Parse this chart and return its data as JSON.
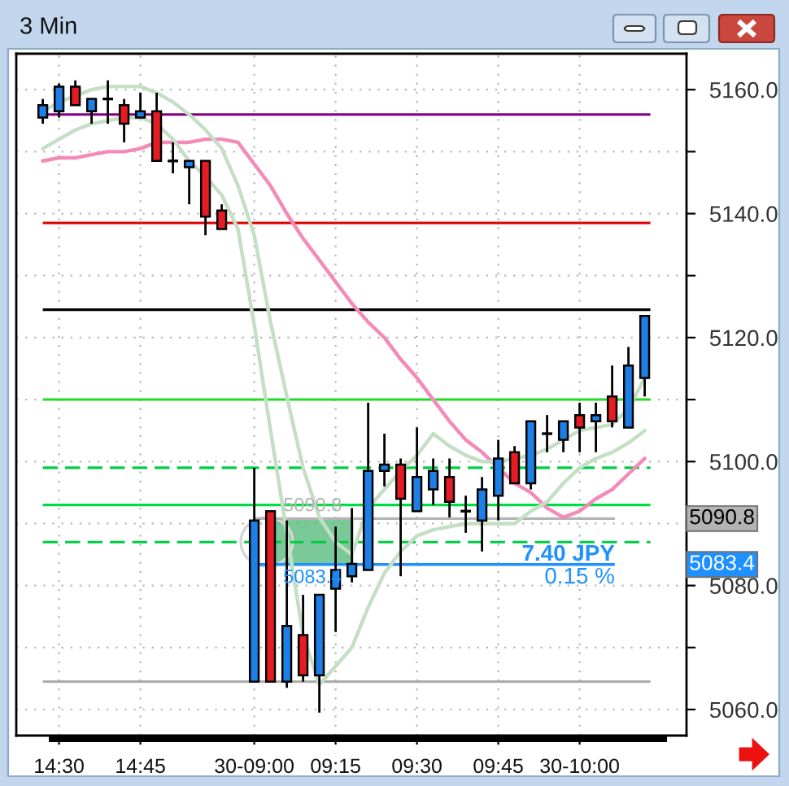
{
  "chart_data": {
    "type": "candlestick",
    "title": "3 Min",
    "categories": [
      null,
      "14:30",
      null,
      null,
      null,
      null,
      "14:45",
      null,
      null,
      null,
      null,
      null,
      null,
      "30-09:00",
      null,
      null,
      null,
      null,
      "09:15",
      null,
      null,
      null,
      null,
      "09:30",
      null,
      null,
      null,
      null,
      "09:45",
      null,
      null,
      null,
      null,
      "30-10:00",
      null,
      null,
      null,
      null
    ],
    "ohlc": [
      [
        5155.5,
        5158.5,
        5154.5,
        5157.5
      ],
      [
        5156.5,
        5161,
        5155.5,
        5160.5
      ],
      [
        5160.5,
        5161.5,
        5157.5,
        5157.5
      ],
      [
        5156.5,
        5158.5,
        5154.5,
        5158.5
      ],
      [
        5158.5,
        5161.5,
        5154.5,
        5158.5
      ],
      [
        5157.5,
        5158.5,
        5151.5,
        5154.5
      ],
      [
        5155.5,
        5159.5,
        5155.5,
        5156.5
      ],
      [
        5156.5,
        5159.5,
        5148.5,
        5148.5
      ],
      [
        5148.5,
        5151.5,
        5146.5,
        5148.5
      ],
      [
        5147.5,
        5148.5,
        5141.5,
        5148.5
      ],
      [
        5148.5,
        5148.5,
        5136.5,
        5139.5
      ],
      [
        5140.5,
        5141.5,
        5137.5,
        5137.5
      ],
      null,
      [
        5064.5,
        5099,
        5064.5,
        5090.5
      ],
      [
        5092,
        5092,
        5064.5,
        5064.5
      ],
      [
        5064.5,
        5090.5,
        5063.5,
        5073.5
      ],
      [
        5072,
        5078.5,
        5064.5,
        5065.5
      ],
      [
        5065.5,
        5078.5,
        5059.5,
        5078.5
      ],
      [
        5079.5,
        5089.5,
        5072.5,
        5082.5
      ],
      [
        5081.5,
        5092.5,
        5080.5,
        5083.5
      ],
      [
        5082.5,
        5109.5,
        5082.5,
        5098.5
      ],
      [
        5098.5,
        5104.5,
        5096,
        5099.5
      ],
      [
        5099.5,
        5100.5,
        5081.5,
        5094
      ],
      [
        5092,
        5105.5,
        5092,
        5097.5
      ],
      [
        5095.5,
        5100.5,
        5093,
        5098.5
      ],
      [
        5097.5,
        5100.5,
        5091,
        5093.5
      ],
      [
        5092,
        5094.5,
        5088.5,
        5092
      ],
      [
        5090.5,
        5097.5,
        5085.5,
        5095.5
      ],
      [
        5094.5,
        5103.5,
        5090.5,
        5100.5
      ],
      [
        5101.5,
        5102.5,
        5096.5,
        5096.5
      ],
      [
        5096.5,
        5106.5,
        5095.5,
        5106.5
      ],
      [
        5104.5,
        5107.5,
        5101.5,
        5104.5
      ],
      [
        5103.5,
        5106.5,
        5101.5,
        5106.5
      ],
      [
        5107.5,
        5109.5,
        5101.5,
        5105.5
      ],
      [
        5106.5,
        5109.5,
        5101.5,
        5107.5
      ],
      [
        5110.5,
        5115.5,
        5105.5,
        5106.5
      ],
      [
        5105.5,
        5118.5,
        5105.5,
        5115.5
      ],
      [
        5113.5,
        5123.5,
        5110.5,
        5123.5
      ]
    ],
    "colors": [
      "#1e7fe6",
      "#1e7fe6",
      "#e51c23",
      "#1e7fe6",
      "#000000",
      "#e51c23",
      "#1e7fe6",
      "#e51c23",
      "#000000",
      "#1e7fe6",
      "#e51c23",
      "#e51c23",
      null,
      "#1e7fe6",
      "#e51c23",
      "#1e7fe6",
      "#e51c23",
      "#1e7fe6",
      "#1e7fe6",
      "#1e7fe6",
      "#1e7fe6",
      "#1e7fe6",
      "#e51c23",
      "#1e7fe6",
      "#1e7fe6",
      "#e51c23",
      "#000000",
      "#1e7fe6",
      "#1e7fe6",
      "#e51c23",
      "#1e7fe6",
      "#000000",
      "#1e7fe6",
      "#e51c23",
      "#1e7fe6",
      "#e51c23",
      "#1e7fe6",
      "#1e7fe6"
    ],
    "series": [
      {
        "type": "line",
        "color": "#f48ab8",
        "values": [
          5148.5,
          5149,
          5149,
          5149.5,
          5150,
          5150,
          5150.5,
          5151.5,
          5151.5,
          5151.5,
          5152,
          5152,
          5151.5,
          5148,
          5144.5,
          5140,
          5136,
          5132.5,
          5129,
          5125.5,
          5122.5,
          5120,
          5116.5,
          5113.5,
          5110,
          5106.5,
          5103.5,
          5101.5,
          5099,
          5096.5,
          5095,
          5092.5,
          5091,
          5092,
          5094,
          5095.5,
          5098,
          5100.5
        ]
      },
      {
        "type": "line",
        "color": "#c4dfc4",
        "values": [
          5156.5,
          5158,
          5159,
          5160,
          5160.5,
          5160.5,
          5160.5,
          5159.5,
          5158,
          5156,
          5153.5,
          5150.5,
          5144.5,
          5136.5,
          5122.5,
          5110.5,
          5099,
          5091,
          5087,
          5085,
          5092.5,
          5095.5,
          5098.5,
          5101,
          5104.5,
          5102.5,
          5101,
          5100,
          5100,
          5100.5,
          5101,
          5102,
          5103.5,
          5105,
          5105.5,
          5106,
          5108.5,
          5113.5
        ]
      },
      {
        "type": "line",
        "color": "#c4dfc4",
        "values": [
          5150.5,
          5152,
          5153.5,
          5154.5,
          5155,
          5155.5,
          5155.5,
          5154.5,
          5152,
          5148.5,
          5146,
          5143,
          5137.5,
          5122,
          5105,
          5088.5,
          5072,
          5064,
          5067,
          5070,
          5076.5,
          5082,
          5085.5,
          5088,
          5089,
          5089.5,
          5090,
          5090,
          5090,
          5090,
          5092,
          5093.5,
          5096.5,
          5099,
          5100.5,
          5101.5,
          5103,
          5105
        ]
      }
    ],
    "ylim": [
      5055.8,
      5165.8
    ],
    "yticks": [
      {
        "value": 5060,
        "label": "5060.0"
      },
      {
        "value": 5070,
        "label": null
      },
      {
        "value": 5080,
        "label": "5080.0"
      },
      {
        "value": 5090,
        "label": null
      },
      {
        "value": 5100,
        "label": "5100.0"
      },
      {
        "value": 5110,
        "label": null
      },
      {
        "value": 5120,
        "label": "5120.0"
      },
      {
        "value": 5130,
        "label": null
      },
      {
        "value": 5140,
        "label": "5140.0"
      },
      {
        "value": 5150,
        "label": null
      },
      {
        "value": 5160,
        "label": "5160.0"
      }
    ],
    "ref_lines": [
      {
        "axis": "y",
        "value": 5156,
        "color": "#800080"
      },
      {
        "axis": "y",
        "value": 5138.5,
        "color": "#dd0000"
      },
      {
        "axis": "y",
        "value": 5124.5,
        "color": "#000000"
      },
      {
        "axis": "y",
        "value": 5110,
        "color": "#22dd22"
      },
      {
        "axis": "y",
        "value": 5099,
        "color": "#00cc44",
        "line_style": "dashed"
      },
      {
        "axis": "y",
        "value": 5093,
        "color": "#00dd44"
      },
      {
        "axis": "y",
        "value": 5087,
        "color": "#00cc44",
        "line_style": "dashed"
      },
      {
        "axis": "y",
        "value": 5064.5,
        "color": "#a8a8a8"
      },
      {
        "axis": "y",
        "value": 5090.8,
        "label": "5090.8",
        "color": "#b4b4b4"
      },
      {
        "axis": "y",
        "value": 5083.4,
        "label": "5083.4",
        "color": "#1e90ff"
      }
    ],
    "bands": [
      {
        "axis": "y",
        "from": 5083.4,
        "to": 5090.8,
        "color": "#4fb878"
      }
    ],
    "annotations": [
      "7.40 JPY",
      "0.15 %"
    ],
    "grid": true
  }
}
